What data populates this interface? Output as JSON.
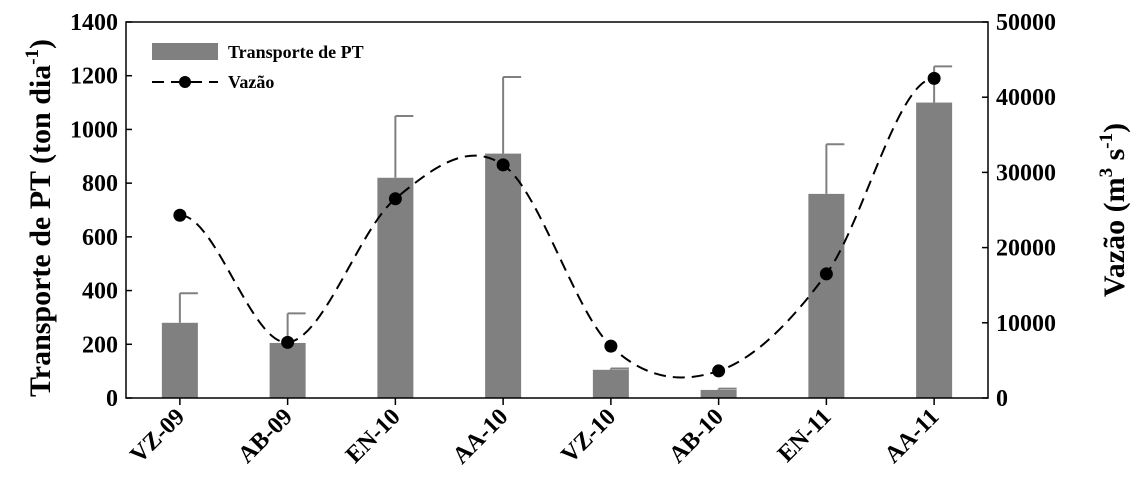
{
  "chart_data": {
    "type": "bar",
    "categories": [
      "VZ-09",
      "AB-09",
      "EN-10",
      "AA-10",
      "VZ-10",
      "AB-10",
      "EN-11",
      "AA-11"
    ],
    "series": [
      {
        "name": "Transporte de PT",
        "type": "bar",
        "axis": "left",
        "values": [
          280,
          205,
          820,
          910,
          105,
          30,
          760,
          1100
        ],
        "error": [
          110,
          110,
          230,
          285,
          5,
          5,
          185,
          135
        ],
        "color": "#808080"
      },
      {
        "name": "Vazão",
        "type": "line",
        "axis": "right",
        "values": [
          24300,
          7400,
          26500,
          31000,
          6900,
          3600,
          16500,
          42500
        ],
        "color": "#000000",
        "line_style": "dashed",
        "marker": "circle"
      }
    ],
    "y_left": {
      "ylim": [
        0,
        1400
      ],
      "ticks": [
        0,
        200,
        400,
        600,
        800,
        1000,
        1200,
        1400
      ],
      "tick_labels": [
        "0",
        "200",
        "400",
        "600",
        "800",
        "1000",
        "1200",
        "1400"
      ]
    },
    "y_right": {
      "ylim": [
        0,
        50000
      ],
      "ticks": [
        0,
        10000,
        20000,
        30000,
        40000,
        50000
      ],
      "tick_labels": [
        "0",
        "10000",
        "20000",
        "30000",
        "40000",
        "50000"
      ]
    },
    "grid": false,
    "legend_position": "top-left"
  },
  "labels": {
    "ylabel_left_main": "Transporte de PT (ton dia",
    "ylabel_left_sup": "-1",
    "ylabel_left_close": ")",
    "ylabel_right_main": "Vazão (m",
    "ylabel_right_sup1": "3",
    "ylabel_right_mid": " s",
    "ylabel_right_sup2": "-1",
    "ylabel_right_close": ")"
  },
  "legend": {
    "bar_label": "Transporte de PT",
    "line_label": "Vazão"
  }
}
